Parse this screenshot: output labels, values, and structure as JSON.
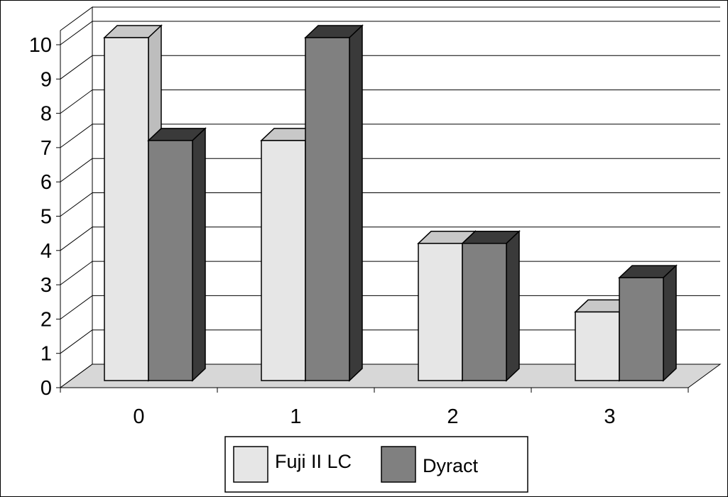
{
  "chart_data": {
    "type": "bar",
    "style": "3d-clustered",
    "categories": [
      "0",
      "1",
      "2",
      "3"
    ],
    "series": [
      {
        "name": "Fuji II LC",
        "values": [
          10,
          7,
          4,
          2
        ],
        "color": "#e6e6e6",
        "top_color": "#c8c8c8",
        "side_color": "#bdbdbd"
      },
      {
        "name": "Dyract",
        "values": [
          7,
          10,
          4,
          3
        ],
        "color": "#808080",
        "top_color": "#3a3a3a",
        "side_color": "#3a3a3a"
      }
    ],
    "ylim": [
      0,
      10
    ],
    "y_ticks": [
      "0",
      "1",
      "2",
      "3",
      "4",
      "5",
      "6",
      "7",
      "8",
      "9",
      "10"
    ],
    "title": "",
    "xlabel": "",
    "ylabel": "",
    "grid": true,
    "legend_position": "bottom",
    "colors": {
      "floor": "#d7d7d7",
      "grid": "#000000",
      "outline": "#000000"
    }
  }
}
